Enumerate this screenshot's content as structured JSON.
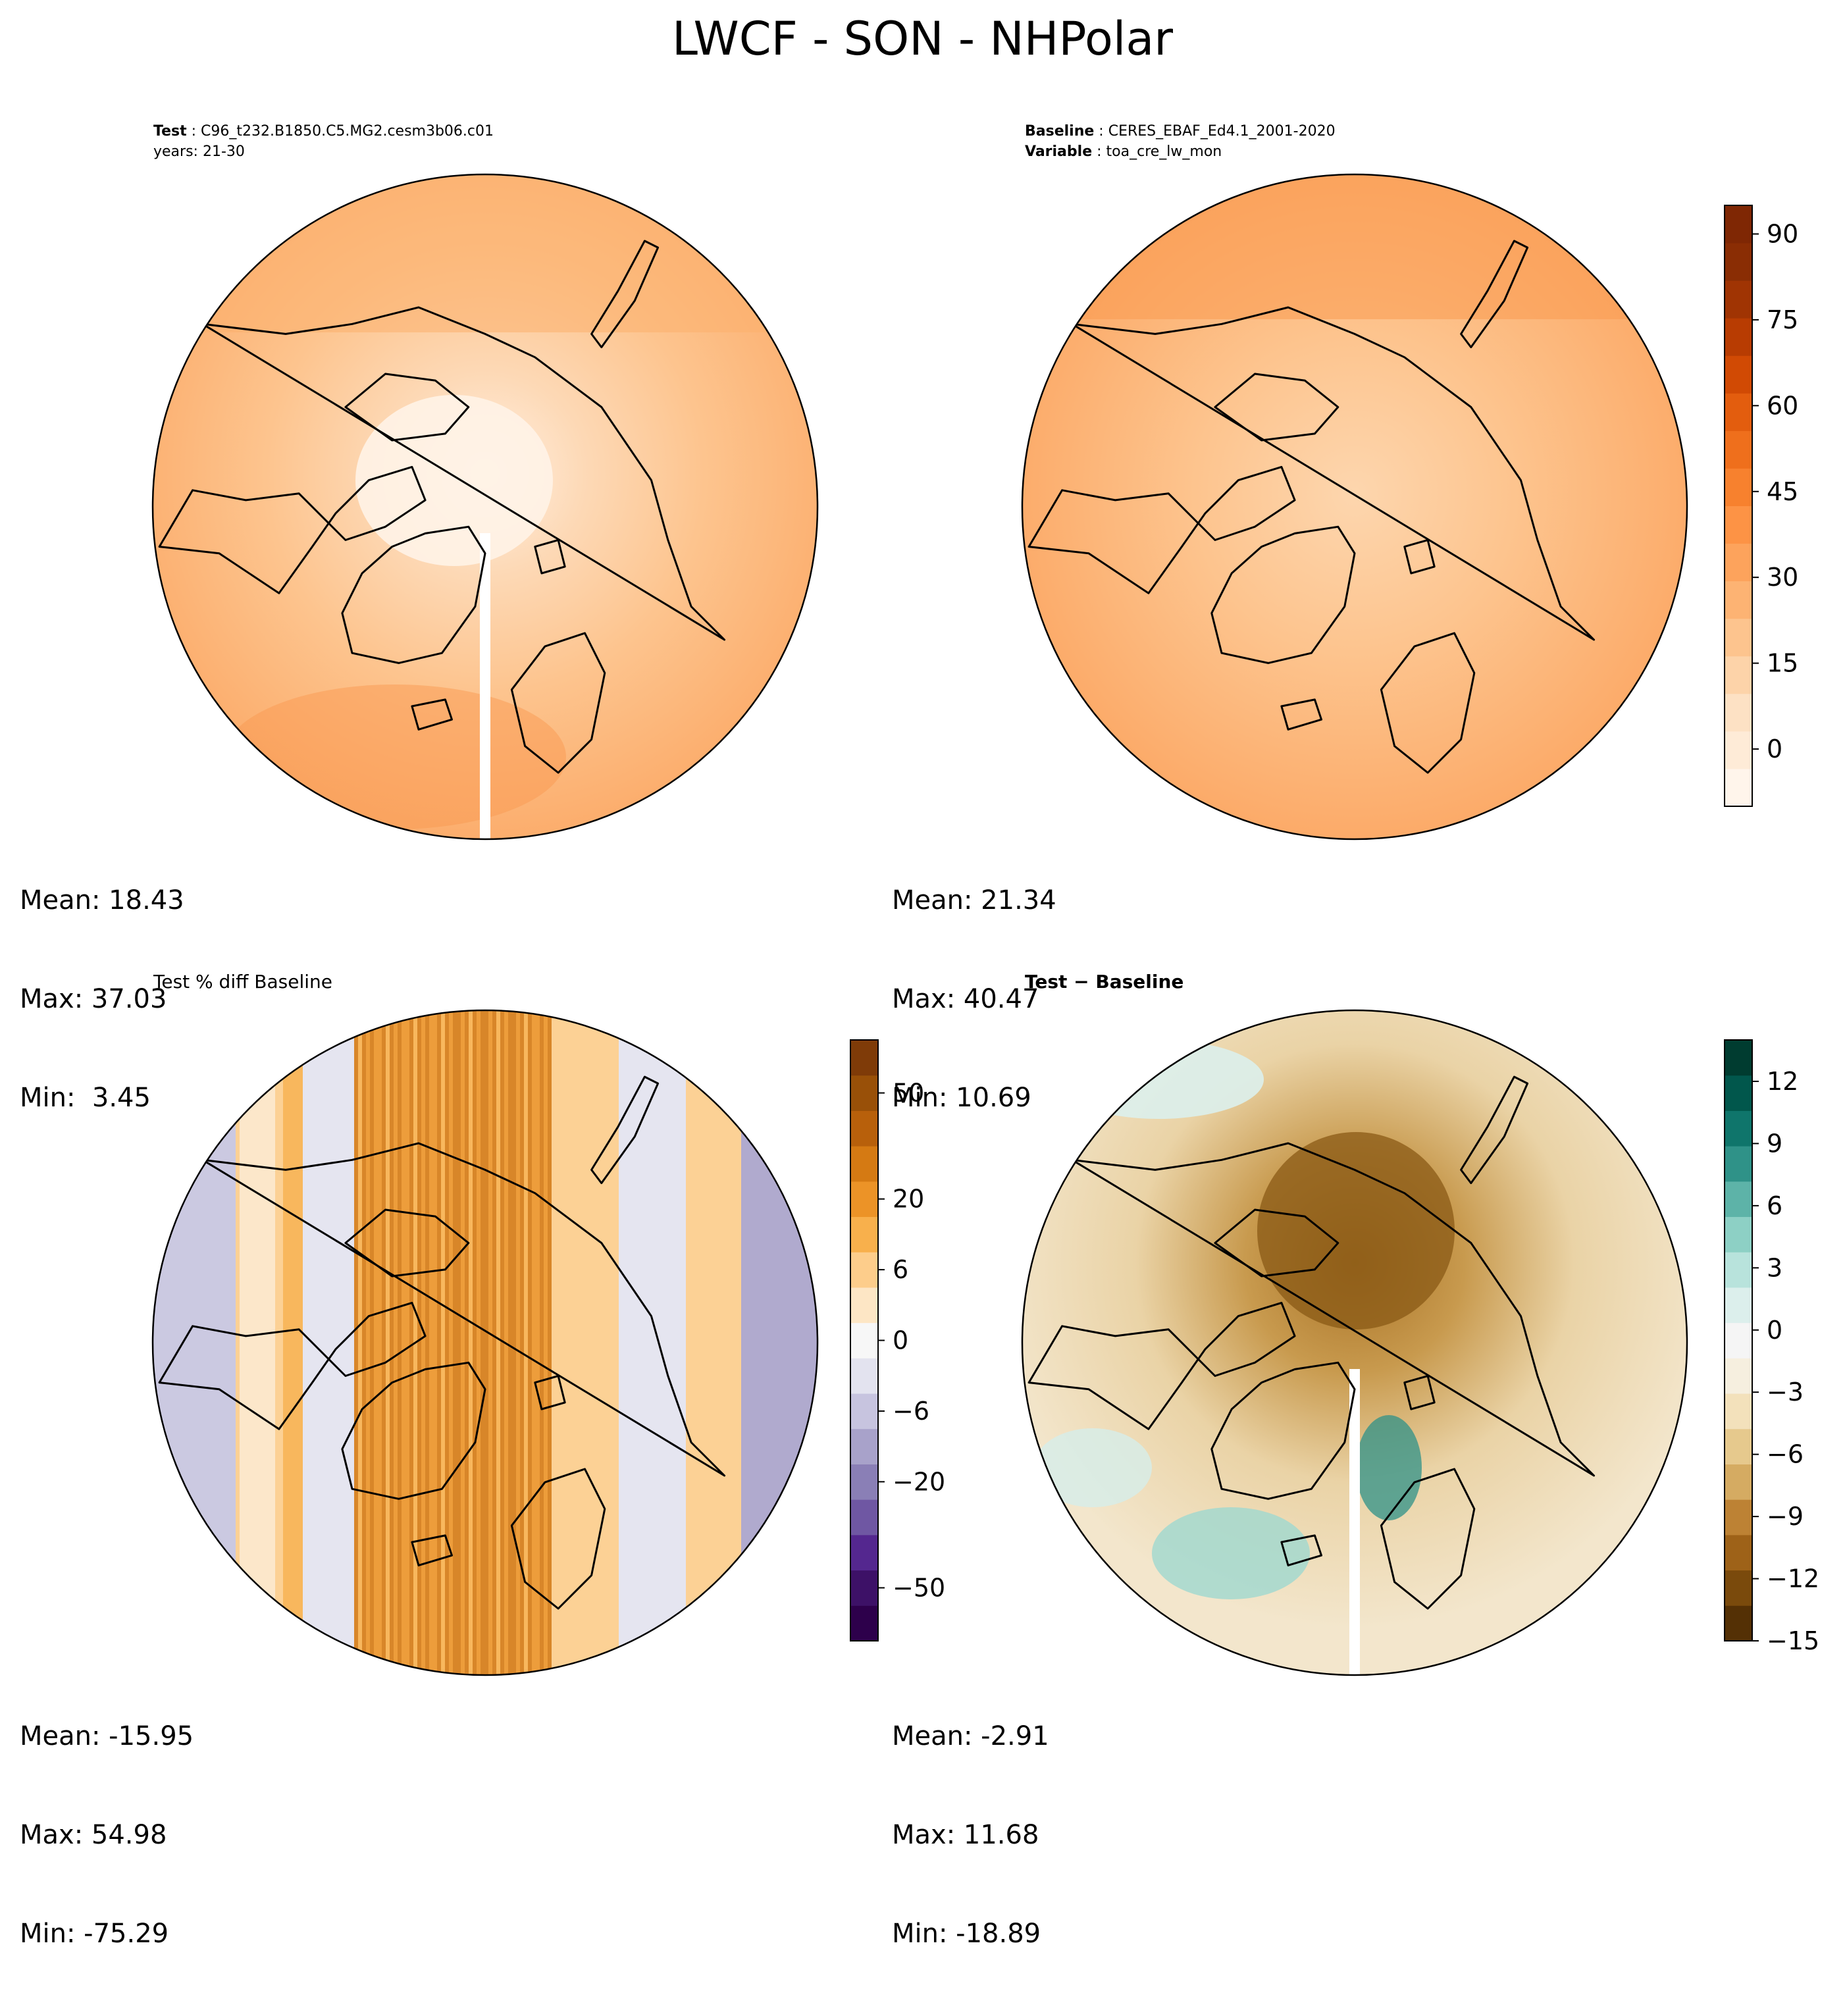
{
  "figure": {
    "title": "LWCF - SON - NHPolar"
  },
  "panels": {
    "test": {
      "label_key": "Test",
      "label_value": "C96_t232.B1850.C5.MG2.cesm3b06.c01",
      "years": "years: 21-30",
      "mean": "Mean: 18.43",
      "max": "Max: 37.03",
      "min": "Min:  3.45"
    },
    "baseline": {
      "label_key": "Baseline",
      "label_value": "CERES_EBAF_Ed4.1_2001-2020",
      "variable_key": "Variable",
      "variable_value": "toa_cre_lw_mon",
      "mean": "Mean: 21.34",
      "max": "Max: 40.47",
      "min": "Min: 10.69"
    },
    "pct_diff": {
      "title": "Test % diff Baseline",
      "mean": "Mean: -15.95",
      "max": "Max: 54.98",
      "min": "Min: -75.29"
    },
    "diff": {
      "title": "Test − Baseline",
      "mean": "Mean: -2.91",
      "max": "Max: 11.68",
      "min": "Min: -18.89"
    }
  },
  "colors": {
    "oranges": [
      "#fff5eb",
      "#feebd7",
      "#fde1c4",
      "#fdd3a9",
      "#fdc48e",
      "#fdb373",
      "#fda35c",
      "#fd9345",
      "#f7812e",
      "#ef6f1c",
      "#e35d0e",
      "#d14a04",
      "#b83c02",
      "#a03403",
      "#8a2d04",
      "#7f2704"
    ],
    "puor": [
      "#2d004b",
      "#3d1167",
      "#54278f",
      "#6f57a3",
      "#8a7fb6",
      "#a8a2ca",
      "#c7c4df",
      "#e3e3ef",
      "#f7f7f7",
      "#fde6c5",
      "#fdcd8b",
      "#f8b04c",
      "#ec9327",
      "#d57a13",
      "#b8600b",
      "#995008",
      "#7f3b08"
    ],
    "brbg": [
      "#543005",
      "#7a4a0c",
      "#9e6218",
      "#bd8234",
      "#d5ab62",
      "#e6c98d",
      "#f3e1bb",
      "#f6efdf",
      "#f5f5f5",
      "#dcefec",
      "#b8e3dc",
      "#8dd0c5",
      "#5db3a8",
      "#2f9288",
      "#0f756b",
      "#01574c",
      "#003c30"
    ],
    "map_light": "#fde6cf",
    "map_mid": "#fdc48e",
    "map_dark": "#fba35e",
    "coast": "#000000"
  },
  "chart_data": [
    {
      "type": "heatmap",
      "title": "Test: C96_t232.B1850.C5.MG2.cesm3b06.c01",
      "projection": "north polar stereographic",
      "stats": {
        "mean": 18.43,
        "max": 37.03,
        "min": 3.45
      }
    },
    {
      "type": "heatmap",
      "title": "Baseline: CERES_EBAF_Ed4.1_2001-2020",
      "projection": "north polar stereographic",
      "colorbar_ticks": [
        0,
        15,
        30,
        45,
        60,
        75,
        90
      ],
      "colorbar_range": [
        -10,
        95
      ],
      "stats": {
        "mean": 21.34,
        "max": 40.47,
        "min": 10.69
      }
    },
    {
      "type": "heatmap",
      "title": "Test % diff Baseline",
      "projection": "north polar stereographic",
      "colorbar_ticks": [
        -50,
        -20,
        -6,
        0,
        6,
        20,
        50
      ],
      "stats": {
        "mean": -15.95,
        "max": 54.98,
        "min": -75.29
      }
    },
    {
      "type": "heatmap",
      "title": "Test − Baseline",
      "projection": "north polar stereographic",
      "colorbar_ticks": [
        12,
        9,
        6,
        3,
        0,
        -3,
        -6,
        -9,
        -12,
        -15
      ],
      "colorbar_range": [
        -15,
        14
      ],
      "stats": {
        "mean": -2.91,
        "max": 11.68,
        "min": -18.89
      }
    }
  ]
}
